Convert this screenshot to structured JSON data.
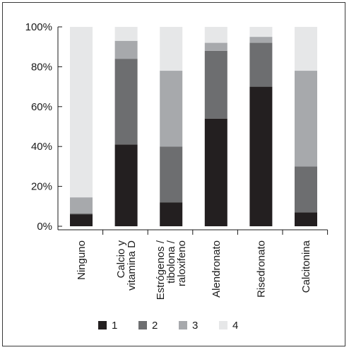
{
  "chart_data": {
    "type": "bar",
    "stacked": true,
    "categories": [
      [
        "Ninguno"
      ],
      [
        "Calcio y",
        "vitamina D"
      ],
      [
        "Estrógenos /",
        "tibolona /",
        "raloxifeno"
      ],
      [
        "Alendronato"
      ],
      [
        "Risedronato"
      ],
      [
        "Calcitonina"
      ]
    ],
    "series": [
      {
        "name": "1",
        "color": "#231f20",
        "values": [
          6,
          41,
          12,
          54,
          70,
          7
        ]
      },
      {
        "name": "2",
        "color": "#6d6e70",
        "values": [
          0.5,
          43,
          28,
          34,
          22,
          23
        ]
      },
      {
        "name": "3",
        "color": "#a7a9ac",
        "values": [
          8,
          9,
          38,
          4,
          3,
          48
        ]
      },
      {
        "name": "4",
        "color": "#e6e7e8",
        "values": [
          85.5,
          7,
          22,
          8,
          5,
          22
        ]
      }
    ],
    "y_ticks": [
      "0%",
      "20%",
      "40%",
      "60%",
      "80%",
      "100%"
    ],
    "ylim": [
      0,
      100
    ],
    "grid": false,
    "legend_position": "bottom"
  }
}
